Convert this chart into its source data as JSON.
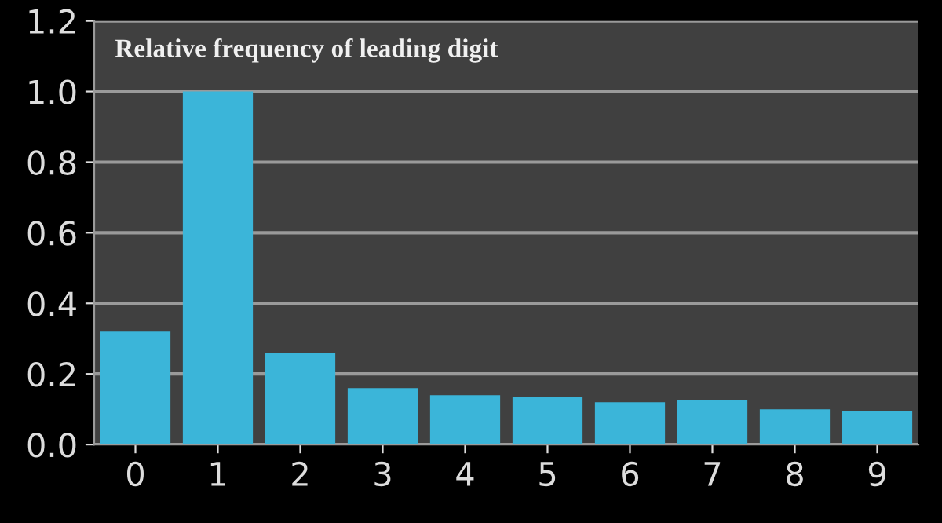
{
  "chart_data": {
    "type": "bar",
    "title": "Relative frequency of leading digit",
    "categories": [
      "0",
      "1",
      "2",
      "3",
      "4",
      "5",
      "6",
      "7",
      "8",
      "9"
    ],
    "values": [
      0.32,
      1.0,
      0.26,
      0.16,
      0.14,
      0.135,
      0.12,
      0.127,
      0.1,
      0.095
    ],
    "color": "#3bb5d9",
    "ylim": [
      0,
      1.2
    ],
    "yticks": [
      {
        "value": 0,
        "label": "0.0"
      },
      {
        "value": 0.2,
        "label": "0.2"
      },
      {
        "value": 0.4,
        "label": "0.4"
      },
      {
        "value": 0.6,
        "label": "0.6"
      },
      {
        "value": 0.8,
        "label": "0.8"
      },
      {
        "value": 1.0,
        "label": "1.0"
      },
      {
        "value": 1.2,
        "label": "1.2"
      }
    ],
    "grid": "y"
  }
}
